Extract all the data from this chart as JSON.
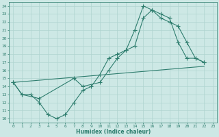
{
  "xlabel": "Humidex (Indice chaleur)",
  "bg_color": "#cde8e5",
  "grid_color": "#b0d4d0",
  "line_color": "#2e7d6e",
  "xlim": [
    -0.5,
    23.5
  ],
  "ylim": [
    9.5,
    24.5
  ],
  "xticks": [
    0,
    1,
    2,
    3,
    4,
    5,
    6,
    7,
    8,
    9,
    10,
    11,
    12,
    13,
    14,
    15,
    16,
    17,
    18,
    19,
    20,
    21,
    22,
    23
  ],
  "yticks": [
    10,
    11,
    12,
    13,
    14,
    15,
    16,
    17,
    18,
    19,
    20,
    21,
    22,
    23,
    24
  ],
  "line1_x": [
    0,
    1,
    2,
    3,
    4,
    5,
    6,
    7,
    8,
    9,
    10,
    11,
    12,
    13,
    14,
    15,
    16,
    17,
    18,
    19,
    20,
    21,
    22
  ],
  "line1_y": [
    14.5,
    13.0,
    13.0,
    12.0,
    10.5,
    10.0,
    10.5,
    12.0,
    13.5,
    14.0,
    15.5,
    17.5,
    18.0,
    18.5,
    21.0,
    24.0,
    23.5,
    23.0,
    22.5,
    19.5,
    17.5,
    17.5,
    17.0
  ],
  "line2_x": [
    0,
    22
  ],
  "line2_y": [
    14.5,
    16.5
  ],
  "line3_x": [
    0,
    1,
    3,
    7,
    8,
    10,
    11,
    12,
    13,
    14,
    15,
    16,
    17,
    18,
    19,
    20,
    21,
    22
  ],
  "line3_y": [
    14.5,
    13.0,
    12.5,
    15.0,
    14.0,
    14.5,
    16.0,
    17.5,
    18.5,
    19.0,
    22.5,
    23.5,
    22.5,
    22.0,
    21.5,
    19.5,
    17.5,
    17.0
  ]
}
